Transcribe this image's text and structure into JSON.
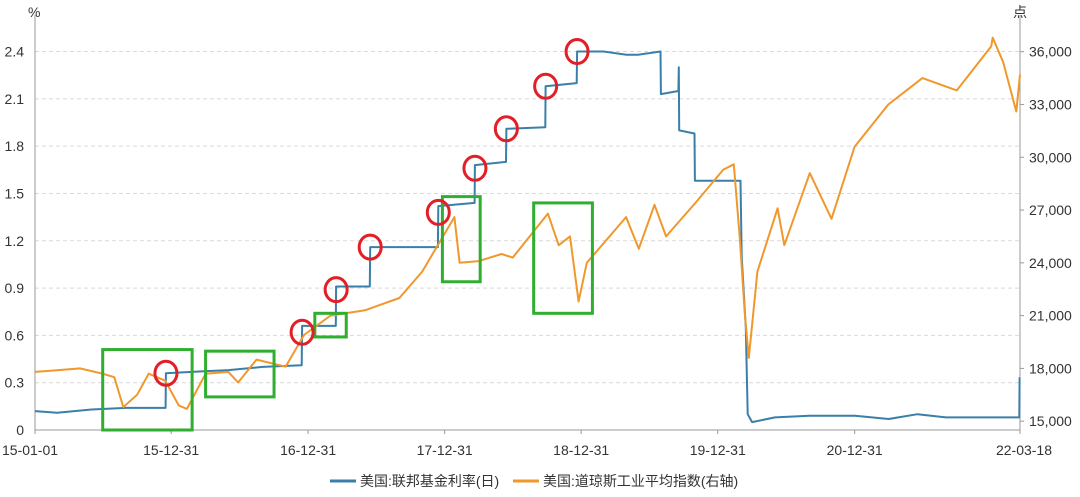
{
  "chart_data": {
    "type": "line",
    "left_axis_unit": "%",
    "right_axis_unit": "点",
    "y_left_ticks": [
      "0",
      "0.3",
      "0.6",
      "0.9",
      "1.2",
      "1.5",
      "1.8",
      "2.1",
      "2.4"
    ],
    "y_left_range": [
      0,
      2.6
    ],
    "y_right_ticks": [
      "15,000",
      "18,000",
      "21,000",
      "24,000",
      "27,000",
      "30,000",
      "33,000",
      "36,000"
    ],
    "y_right_range": [
      14500,
      37800
    ],
    "x_tick_labels": [
      "15-01-01",
      "15-12-31",
      "16-12-31",
      "17-12-31",
      "18-12-31",
      "19-12-31",
      "20-12-31",
      "22-03-18"
    ],
    "x_ticks": [
      "2015-01-01",
      "2015-12-31",
      "2016-12-31",
      "2017-12-31",
      "2018-12-31",
      "2019-12-31",
      "2020-12-31",
      "2022-03-18"
    ],
    "x_range": [
      "2015-01-01",
      "2022-03-18"
    ],
    "grid": "horizontal-dashed",
    "legend_position": "bottom-center",
    "series": [
      {
        "name": "美国:联邦基金利率(日)",
        "axis": "left",
        "color": "#3a7fa8",
        "points": [
          [
            "2015-01-01",
            0.12
          ],
          [
            "2015-03-01",
            0.11
          ],
          [
            "2015-06-01",
            0.13
          ],
          [
            "2015-09-01",
            0.14
          ],
          [
            "2015-12-16",
            0.14
          ],
          [
            "2015-12-17",
            0.36
          ],
          [
            "2016-03-01",
            0.37
          ],
          [
            "2016-06-01",
            0.38
          ],
          [
            "2016-09-01",
            0.4
          ],
          [
            "2016-12-14",
            0.41
          ],
          [
            "2016-12-15",
            0.66
          ],
          [
            "2017-02-01",
            0.66
          ],
          [
            "2017-03-15",
            0.66
          ],
          [
            "2017-03-16",
            0.91
          ],
          [
            "2017-06-14",
            0.91
          ],
          [
            "2017-06-15",
            1.16
          ],
          [
            "2017-10-01",
            1.16
          ],
          [
            "2017-12-13",
            1.16
          ],
          [
            "2017-12-14",
            1.42
          ],
          [
            "2018-03-21",
            1.44
          ],
          [
            "2018-03-22",
            1.68
          ],
          [
            "2018-06-13",
            1.7
          ],
          [
            "2018-06-14",
            1.91
          ],
          [
            "2018-09-26",
            1.92
          ],
          [
            "2018-09-27",
            2.18
          ],
          [
            "2018-12-19",
            2.2
          ],
          [
            "2018-12-20",
            2.4
          ],
          [
            "2019-03-01",
            2.4
          ],
          [
            "2019-05-01",
            2.38
          ],
          [
            "2019-06-01",
            2.38
          ],
          [
            "2019-07-31",
            2.4
          ],
          [
            "2019-08-01",
            2.13
          ],
          [
            "2019-09-17",
            2.15
          ],
          [
            "2019-09-18",
            2.3
          ],
          [
            "2019-09-19",
            1.9
          ],
          [
            "2019-10-30",
            1.88
          ],
          [
            "2019-10-31",
            1.58
          ],
          [
            "2020-01-15",
            1.58
          ],
          [
            "2020-03-01",
            1.58
          ],
          [
            "2020-03-04",
            1.1
          ],
          [
            "2020-03-15",
            0.65
          ],
          [
            "2020-03-20",
            0.1
          ],
          [
            "2020-04-01",
            0.05
          ],
          [
            "2020-06-01",
            0.08
          ],
          [
            "2020-09-01",
            0.09
          ],
          [
            "2021-01-01",
            0.09
          ],
          [
            "2021-04-01",
            0.07
          ],
          [
            "2021-06-17",
            0.1
          ],
          [
            "2021-09-01",
            0.08
          ],
          [
            "2022-01-01",
            0.08
          ],
          [
            "2022-03-16",
            0.08
          ],
          [
            "2022-03-17",
            0.33
          ],
          [
            "2022-03-18",
            0.33
          ]
        ]
      },
      {
        "name": "美国:道琼斯工业平均指数(右轴)",
        "axis": "right",
        "color": "#f0982c",
        "points": [
          [
            "2015-01-01",
            17800
          ],
          [
            "2015-03-01",
            17900
          ],
          [
            "2015-05-01",
            18000
          ],
          [
            "2015-07-01",
            17700
          ],
          [
            "2015-08-01",
            17500
          ],
          [
            "2015-08-25",
            15800
          ],
          [
            "2015-10-01",
            16500
          ],
          [
            "2015-11-01",
            17700
          ],
          [
            "2015-12-15",
            17300
          ],
          [
            "2016-01-20",
            15900
          ],
          [
            "2016-02-11",
            15700
          ],
          [
            "2016-04-01",
            17700
          ],
          [
            "2016-06-01",
            17800
          ],
          [
            "2016-06-27",
            17200
          ],
          [
            "2016-08-15",
            18500
          ],
          [
            "2016-11-01",
            18100
          ],
          [
            "2016-12-20",
            19900
          ],
          [
            "2017-03-01",
            21000
          ],
          [
            "2017-06-01",
            21300
          ],
          [
            "2017-09-01",
            22000
          ],
          [
            "2017-11-01",
            23500
          ],
          [
            "2018-01-26",
            26600
          ],
          [
            "2018-02-09",
            24000
          ],
          [
            "2018-04-01",
            24100
          ],
          [
            "2018-06-01",
            24500
          ],
          [
            "2018-07-01",
            24300
          ],
          [
            "2018-10-03",
            26800
          ],
          [
            "2018-11-01",
            25000
          ],
          [
            "2018-12-01",
            25500
          ],
          [
            "2018-12-24",
            21800
          ],
          [
            "2019-01-15",
            24000
          ],
          [
            "2019-04-30",
            26600
          ],
          [
            "2019-06-03",
            24800
          ],
          [
            "2019-07-15",
            27300
          ],
          [
            "2019-08-15",
            25500
          ],
          [
            "2019-11-01",
            27400
          ],
          [
            "2020-01-15",
            29300
          ],
          [
            "2020-02-12",
            29600
          ],
          [
            "2020-02-28",
            25400
          ],
          [
            "2020-03-12",
            21200
          ],
          [
            "2020-03-23",
            18600
          ],
          [
            "2020-04-15",
            23500
          ],
          [
            "2020-06-08",
            27100
          ],
          [
            "2020-06-26",
            25000
          ],
          [
            "2020-09-02",
            29100
          ],
          [
            "2020-10-30",
            26500
          ],
          [
            "2020-12-31",
            30600
          ],
          [
            "2021-03-31",
            33000
          ],
          [
            "2021-06-30",
            34500
          ],
          [
            "2021-09-30",
            33800
          ],
          [
            "2021-12-31",
            36300
          ],
          [
            "2022-01-04",
            36800
          ],
          [
            "2022-02-01",
            35400
          ],
          [
            "2022-03-08",
            32600
          ],
          [
            "2022-03-18",
            34700
          ]
        ]
      }
    ],
    "annotations": {
      "red_circles": [
        {
          "date": "2015-12-17",
          "axis": "left",
          "value": 0.36
        },
        {
          "date": "2016-12-15",
          "axis": "left",
          "value": 0.62
        },
        {
          "date": "2017-03-16",
          "axis": "left",
          "value": 0.89
        },
        {
          "date": "2017-06-15",
          "axis": "left",
          "value": 1.16
        },
        {
          "date": "2017-12-14",
          "axis": "left",
          "value": 1.38
        },
        {
          "date": "2018-03-22",
          "axis": "left",
          "value": 1.66
        },
        {
          "date": "2018-06-14",
          "axis": "left",
          "value": 1.91
        },
        {
          "date": "2018-09-27",
          "axis": "left",
          "value": 2.18
        },
        {
          "date": "2018-12-20",
          "axis": "left",
          "value": 2.4
        }
      ],
      "green_boxes": [
        {
          "from": "2015-07-01",
          "to": "2016-02-25",
          "axis": "left",
          "ymin": 0,
          "ymax": 0.51
        },
        {
          "from": "2016-04-01",
          "to": "2016-10-01",
          "axis": "left",
          "ymin": 0.21,
          "ymax": 0.5
        },
        {
          "from": "2017-01-18",
          "to": "2017-04-12",
          "axis": "left",
          "ymin": 0.59,
          "ymax": 0.74
        },
        {
          "from": "2017-12-25",
          "to": "2018-04-05",
          "axis": "left",
          "ymin": 0.94,
          "ymax": 1.48
        },
        {
          "from": "2018-08-26",
          "to": "2019-01-30",
          "axis": "left",
          "ymin": 0.74,
          "ymax": 1.44
        }
      ]
    }
  }
}
